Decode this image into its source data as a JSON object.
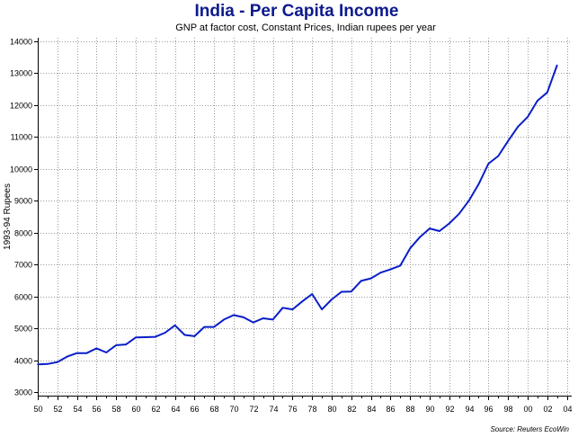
{
  "chart_data": {
    "type": "line",
    "title": "India - Per Capita Income",
    "subtitle": "GNP at factor cost, Constant Prices, Indian rupees per year",
    "ylabel": "1993-94 Rupees",
    "xlabel": "",
    "source": "Source: Reuters EcoWin",
    "ylim": [
      2900,
      14100
    ],
    "yticks": [
      3000,
      4000,
      5000,
      6000,
      7000,
      8000,
      9000,
      10000,
      11000,
      12000,
      13000,
      14000
    ],
    "xlim": [
      1950,
      2004.5
    ],
    "xticks": [
      {
        "year": 1950,
        "label": "50"
      },
      {
        "year": 1952,
        "label": "52"
      },
      {
        "year": 1954,
        "label": "54"
      },
      {
        "year": 1956,
        "label": "56"
      },
      {
        "year": 1958,
        "label": "58"
      },
      {
        "year": 1960,
        "label": "60"
      },
      {
        "year": 1962,
        "label": "62"
      },
      {
        "year": 1964,
        "label": "64"
      },
      {
        "year": 1966,
        "label": "66"
      },
      {
        "year": 1968,
        "label": "68"
      },
      {
        "year": 1970,
        "label": "70"
      },
      {
        "year": 1972,
        "label": "72"
      },
      {
        "year": 1974,
        "label": "74"
      },
      {
        "year": 1976,
        "label": "76"
      },
      {
        "year": 1978,
        "label": "78"
      },
      {
        "year": 1980,
        "label": "80"
      },
      {
        "year": 1982,
        "label": "82"
      },
      {
        "year": 1984,
        "label": "84"
      },
      {
        "year": 1986,
        "label": "86"
      },
      {
        "year": 1988,
        "label": "88"
      },
      {
        "year": 1990,
        "label": "90"
      },
      {
        "year": 1992,
        "label": "92"
      },
      {
        "year": 1994,
        "label": "94"
      },
      {
        "year": 1996,
        "label": "96"
      },
      {
        "year": 1998,
        "label": "98"
      },
      {
        "year": 2000,
        "label": "00"
      },
      {
        "year": 2002,
        "label": "02"
      },
      {
        "year": 2004,
        "label": "04"
      }
    ],
    "grid": true,
    "series": [
      {
        "color": "#0a1ec8",
        "x": [
          1950,
          1951,
          1952,
          1953,
          1954,
          1955,
          1956,
          1957,
          1958,
          1959,
          1960,
          1961,
          1962,
          1963,
          1964,
          1965,
          1966,
          1967,
          1968,
          1969,
          1970,
          1971,
          1972,
          1973,
          1974,
          1975,
          1976,
          1977,
          1978,
          1979,
          1980,
          1981,
          1982,
          1983,
          1984,
          1985,
          1986,
          1987,
          1988,
          1989,
          1990,
          1991,
          1992,
          1993,
          1994,
          1995,
          1996,
          1997,
          1998,
          1999,
          2000,
          2001,
          2002,
          2003
        ],
        "values": [
          3880,
          3890,
          3950,
          4120,
          4230,
          4230,
          4380,
          4250,
          4480,
          4500,
          4720,
          4730,
          4740,
          4870,
          5100,
          4800,
          4760,
          5050,
          5050,
          5280,
          5420,
          5350,
          5190,
          5320,
          5280,
          5650,
          5600,
          5850,
          6080,
          5600,
          5910,
          6150,
          6160,
          6490,
          6570,
          6750,
          6850,
          6970,
          7510,
          7860,
          8130,
          8050,
          8290,
          8590,
          9000,
          9520,
          10160,
          10400,
          10870,
          11310,
          11620,
          12130,
          12390,
          13240
        ]
      }
    ]
  }
}
